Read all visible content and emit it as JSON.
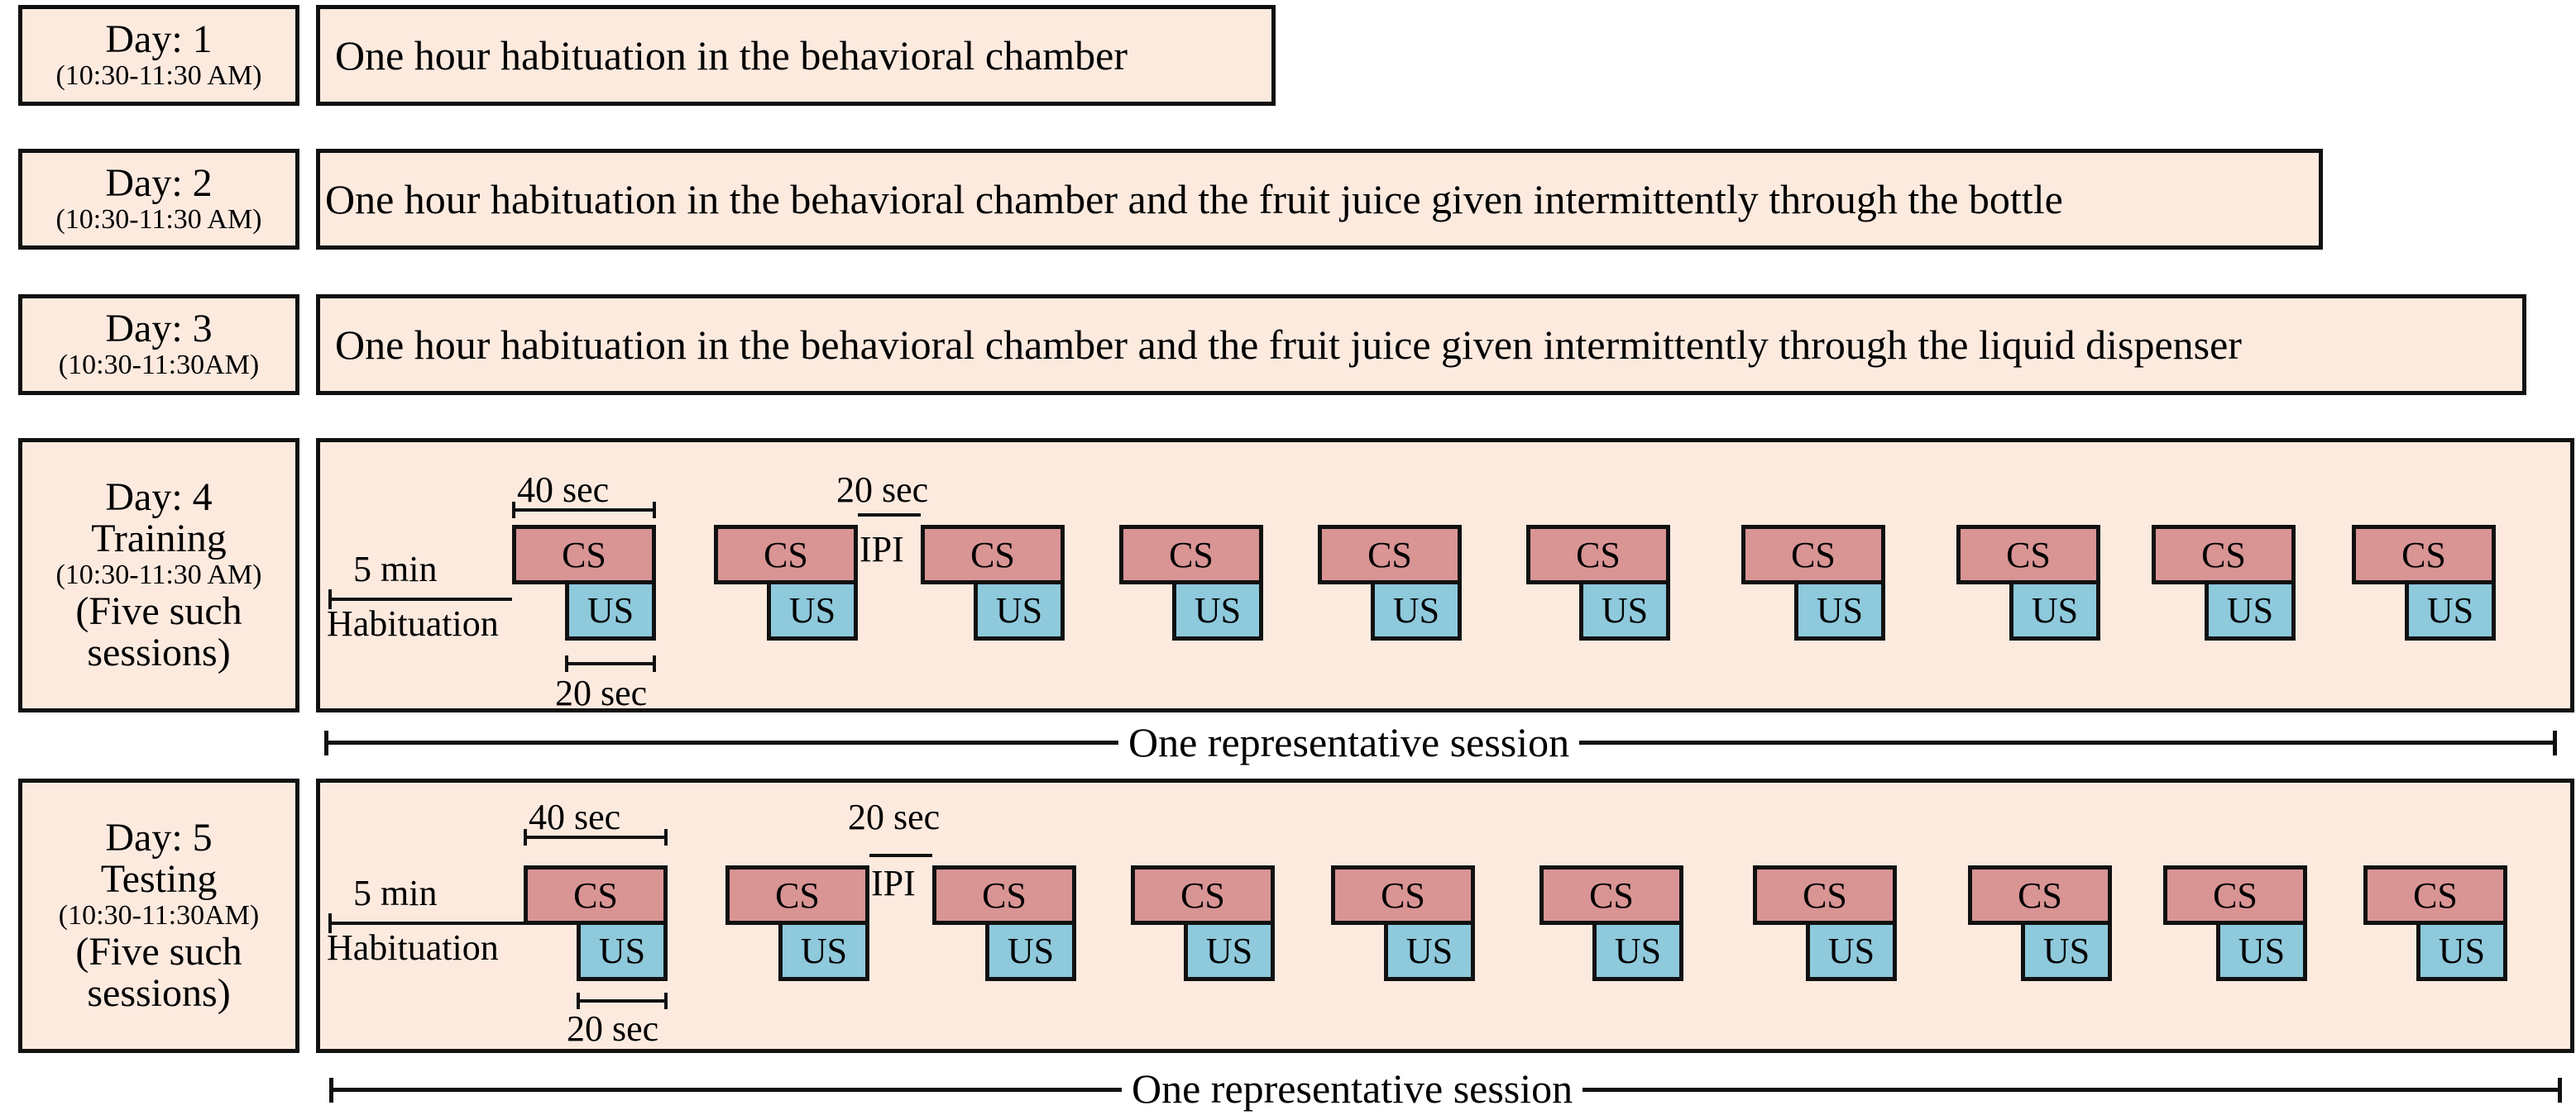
{
  "days": [
    {
      "label": "Day: 1",
      "time": "(10:30-11:30 AM)",
      "desc": "One hour habituation in the behavioral chamber"
    },
    {
      "label": "Day: 2",
      "time": "(10:30-11:30 AM)",
      "desc": "One hour habituation in the behavioral chamber and the fruit juice given intermittently through the bottle"
    },
    {
      "label": "Day: 3",
      "time": "(10:30-11:30AM)",
      "desc": "One hour habituation in the behavioral chamber and the fruit juice given intermittently through the liquid dispenser"
    }
  ],
  "sessions": [
    {
      "label1": "Day: 4",
      "label2": "Training",
      "time": "(10:30-11:30 AM)",
      "label3": "(Five such",
      "label4": "sessions)"
    },
    {
      "label1": "Day: 5",
      "label2": "Testing",
      "time": "(10:30-11:30AM)",
      "label3": "(Five such",
      "label4": "sessions)"
    }
  ],
  "labels": {
    "cs": "CS",
    "us": "US",
    "cs_duration": "40 sec",
    "us_duration": "20 sec",
    "ipi_duration": "20 sec",
    "ipi": "IPI",
    "hab_duration": "5 min",
    "habituation": "Habituation",
    "session": "One representative session"
  },
  "colors": {
    "panel": "#fdeadf",
    "cs": "#d99494",
    "us": "#8ec9dc"
  }
}
